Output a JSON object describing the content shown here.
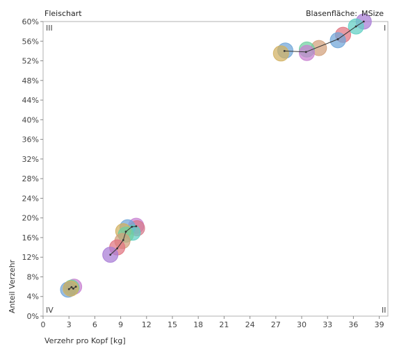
{
  "chart_data": {
    "type": "scatter",
    "title": "Fleischart",
    "size_label": "Blasenfläche:",
    "size_variable": "MSize",
    "xlabel": "Verzehr pro Kopf [kg]",
    "ylabel": "Anteil Verzehr",
    "xlim": [
      0,
      40
    ],
    "ylim": [
      0,
      60
    ],
    "x_ticks": [
      "0",
      "3",
      "6",
      "9",
      "12",
      "15",
      "18",
      "21",
      "24",
      "27",
      "30",
      "33",
      "36",
      "39"
    ],
    "y_ticks": [
      "0%",
      "4%",
      "8%",
      "12%",
      "16%",
      "20%",
      "24%",
      "28%",
      "32%",
      "36%",
      "40%",
      "44%",
      "48%",
      "52%",
      "56%",
      "60%"
    ],
    "quadrants": {
      "top_left": "III",
      "top_right": "I",
      "bottom_left": "IV",
      "bottom_right": "II"
    },
    "series": [
      {
        "color": "#4f81bd",
        "trail": [
          [
            28.0,
            54.0
          ],
          [
            30.5,
            53.8
          ],
          [
            34.2,
            56.4
          ],
          [
            36.3,
            59.0
          ],
          [
            37.2,
            60.0
          ]
        ],
        "points": [
          {
            "x": 37.2,
            "y": 60.0,
            "color": "#a87bd6"
          },
          {
            "x": 36.3,
            "y": 59.0,
            "color": "#5fcfc3"
          },
          {
            "x": 34.8,
            "y": 57.3,
            "color": "#e0737f"
          },
          {
            "x": 34.2,
            "y": 56.2,
            "color": "#6fa5d8"
          },
          {
            "x": 32.0,
            "y": 54.6,
            "color": "#d1a07a"
          },
          {
            "x": 30.6,
            "y": 54.3,
            "color": "#6fcfa0"
          },
          {
            "x": 30.6,
            "y": 53.6,
            "color": "#c77fd0"
          },
          {
            "x": 28.1,
            "y": 54.1,
            "color": "#6fa5d8"
          },
          {
            "x": 27.6,
            "y": 53.5,
            "color": "#d1b060"
          }
        ]
      },
      {
        "color": "#c0504d",
        "trail": [
          [
            7.8,
            12.5
          ],
          [
            8.6,
            13.8
          ],
          [
            9.3,
            15.5
          ],
          [
            9.6,
            17.2
          ],
          [
            10.3,
            18.2
          ],
          [
            10.8,
            18.3
          ]
        ],
        "points": [
          {
            "x": 10.8,
            "y": 18.4,
            "color": "#c77fd0"
          },
          {
            "x": 10.9,
            "y": 17.9,
            "color": "#d67a8a"
          },
          {
            "x": 9.8,
            "y": 18.1,
            "color": "#6fa5d8"
          },
          {
            "x": 10.4,
            "y": 17.0,
            "color": "#5fcfc3"
          },
          {
            "x": 9.3,
            "y": 17.3,
            "color": "#d1b060"
          },
          {
            "x": 9.6,
            "y": 16.6,
            "color": "#6fcfa0"
          },
          {
            "x": 9.2,
            "y": 15.3,
            "color": "#d1a07a"
          },
          {
            "x": 8.6,
            "y": 14.0,
            "color": "#e0737f"
          },
          {
            "x": 7.8,
            "y": 12.5,
            "color": "#a87bd6"
          }
        ]
      },
      {
        "color": "#8064a2",
        "trail": [
          [
            3.0,
            5.5
          ],
          [
            3.3,
            5.9
          ],
          [
            3.5,
            5.6
          ],
          [
            3.8,
            6.0
          ]
        ],
        "points": [
          {
            "x": 3.6,
            "y": 6.0,
            "color": "#c77fd0"
          },
          {
            "x": 3.3,
            "y": 5.8,
            "color": "#6fcfa0"
          },
          {
            "x": 2.9,
            "y": 5.4,
            "color": "#6fa5d8"
          },
          {
            "x": 3.2,
            "y": 5.6,
            "color": "#d1b060"
          }
        ]
      }
    ]
  }
}
